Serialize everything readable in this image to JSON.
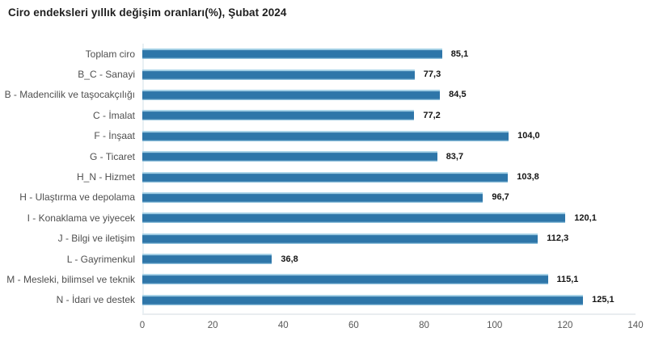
{
  "title": "Ciro endeksleri yıllık değişim oranları(%), Şubat 2024",
  "chart_data": {
    "type": "bar",
    "orientation": "horizontal",
    "title": "Ciro endeksleri yıllık değişim oranları(%), Şubat 2024",
    "categories": [
      "Toplam ciro",
      "B_C - Sanayi",
      "B - Madencilik ve taşocakçılığı",
      "C - İmalat",
      "F - İnşaat",
      "G - Ticaret",
      "H_N - Hizmet",
      "H - Ulaştırma ve depolama",
      "I - Konaklama ve yiyecek",
      "J - Bilgi ve iletişim",
      "L - Gayrimenkul",
      "M - Mesleki, bilimsel ve teknik",
      "N - İdari ve destek"
    ],
    "values": [
      85.1,
      77.3,
      84.5,
      77.2,
      104.0,
      83.7,
      103.8,
      96.7,
      120.1,
      112.3,
      36.8,
      115.1,
      125.1
    ],
    "value_labels": [
      "85,1",
      "77,3",
      "84,5",
      "77,2",
      "104,0",
      "83,7",
      "103,8",
      "96,7",
      "120,1",
      "112,3",
      "36,8",
      "115,1",
      "125,1"
    ],
    "xlabel": "",
    "ylabel": "",
    "xlim": [
      0,
      140
    ],
    "x_ticks": [
      0,
      20,
      40,
      60,
      80,
      100,
      120,
      140
    ],
    "grid": false,
    "legend": "none",
    "bar_color": "#2e76a9",
    "bar_highlight": "#aed7ea"
  }
}
